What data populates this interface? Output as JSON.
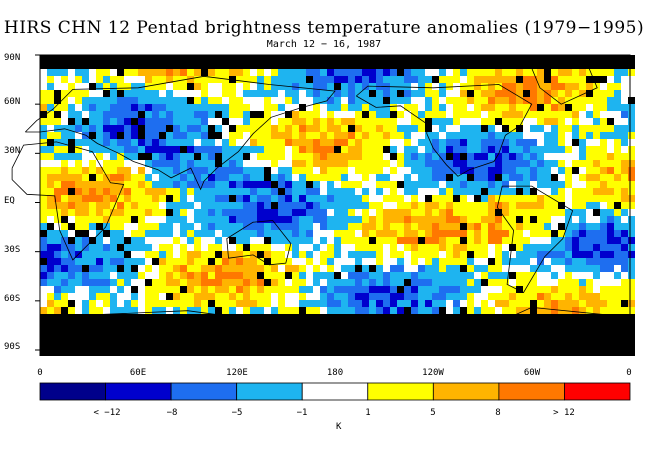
{
  "title": "HIRS CHN 12 Pentad brightness temperature anomalies (1979−1995)",
  "subtitle": "March 12 − 16, 1987",
  "y_labels": [
    "90N",
    "60N",
    "30N",
    "EQ",
    "30S",
    "60S",
    "90S"
  ],
  "x_labels": [
    "0",
    "60E",
    "120E",
    "180",
    "120W",
    "60W",
    "0"
  ],
  "colorbar": {
    "colors": [
      "#00008b",
      "#0000cd",
      "#1e6ef0",
      "#1eb4f0",
      "#ffffff",
      "#ffff00",
      "#ffb400",
      "#ff7800",
      "#ff0000"
    ],
    "labels": [
      "< −12",
      "−8",
      "−5",
      "−1",
      "1",
      "5",
      "8",
      "> 12"
    ],
    "unit": "K"
  },
  "map_style": {
    "missing_color": "#000000",
    "coast_color": "#000000",
    "background": "#ffffff"
  }
}
